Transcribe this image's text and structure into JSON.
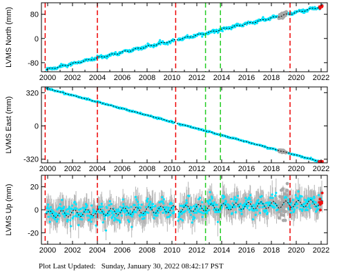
{
  "footer": {
    "label": "Plot Last Updated:",
    "timestamp": "Sunday, January 30, 2022 08:42:17 PST"
  },
  "chart_data": [
    {
      "type": "scatter",
      "title": "",
      "ylabel": "LVMS North (mm)",
      "xlabel": "",
      "xlim": [
        1999.5,
        2022.5
      ],
      "ylim": [
        -110,
        118
      ],
      "x_ticks": [
        2000,
        2002,
        2004,
        2006,
        2008,
        2010,
        2012,
        2014,
        2016,
        2018,
        2020,
        2022
      ],
      "y_ticks": [
        -80,
        0,
        80
      ],
      "trend": {
        "x": [
          1999.9,
          2022.1
        ],
        "y": [
          -103,
          106
        ]
      },
      "gap_x": [
        2010.2,
        2010.5
      ],
      "scatter_sd": 2.5,
      "error_sd": 3.5,
      "seasonal_amp": 2.5,
      "grey_patch": {
        "x": [
          2018.6,
          2019.2
        ],
        "y_offset": 6
      },
      "red_dots_x": [
        2021.9,
        2022.05
      ],
      "red_lines_x": [
        1999.8,
        2004.0,
        2010.3,
        2019.5
      ],
      "green_lines_x": [
        2012.7,
        2013.9
      ],
      "grid": false
    },
    {
      "type": "scatter",
      "title": "",
      "ylabel": "LVMS East (mm)",
      "xlabel": "",
      "xlim": [
        1999.5,
        2022.5
      ],
      "ylim": [
        -355,
        375
      ],
      "x_ticks": [
        2000,
        2002,
        2004,
        2006,
        2008,
        2010,
        2012,
        2014,
        2016,
        2018,
        2020,
        2022
      ],
      "y_ticks": [
        -320,
        0,
        320
      ],
      "trend": {
        "x": [
          1999.9,
          2022.1
        ],
        "y": [
          362,
          -348
        ]
      },
      "gap_x": [
        2010.2,
        2010.5
      ],
      "scatter_sd": 3,
      "error_sd": 4,
      "seasonal_amp": 2,
      "grey_patch": {
        "x": [
          2018.6,
          2019.2
        ],
        "y_offset": 12
      },
      "red_dots_x": [
        2021.9,
        2022.05
      ],
      "red_lines_x": [
        1999.8,
        2004.0,
        2010.3,
        2019.5
      ],
      "green_lines_x": [
        2012.7,
        2013.9
      ],
      "grid": false
    },
    {
      "type": "scatter",
      "title": "",
      "ylabel": "LVMS Up (mm)",
      "xlabel": "",
      "xlim": [
        1999.5,
        2022.5
      ],
      "ylim": [
        -30,
        30
      ],
      "x_ticks": [
        2000,
        2002,
        2004,
        2006,
        2008,
        2010,
        2012,
        2014,
        2016,
        2018,
        2020,
        2022
      ],
      "y_ticks": [
        -20,
        0,
        20
      ],
      "trend": {
        "x": [
          1999.9,
          2022.1
        ],
        "y": [
          -4,
          6
        ]
      },
      "gap_x": [
        2010.2,
        2010.5
      ],
      "scatter_sd": 4,
      "error_sd": 9,
      "seasonal_amp": 3,
      "grey_patch": {
        "x": [
          2018.6,
          2019.3
        ],
        "y_offset": 14
      },
      "red_dots_x": [
        2021.9,
        2022.05
      ],
      "red_lines_x": [
        1999.8,
        2004.0,
        2010.3,
        2019.5
      ],
      "green_lines_x": [
        2012.7,
        2013.9
      ],
      "grid": false
    }
  ]
}
